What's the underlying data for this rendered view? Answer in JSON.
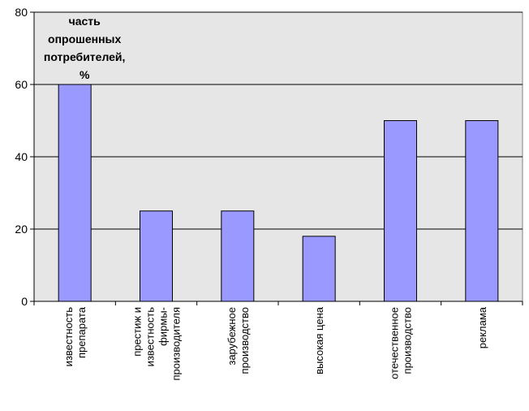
{
  "chart_data": {
    "type": "bar",
    "title_lines": [
      "часть",
      "опрошенных",
      "потребителей,",
      "%"
    ],
    "categories": [
      [
        "известность",
        "препарата"
      ],
      [
        "престиж и",
        "известность",
        "фирмы-",
        "производителя"
      ],
      [
        "зарубежное",
        "производство"
      ],
      [
        "высокая цена"
      ],
      [
        "отечественное",
        "производство"
      ],
      [
        "реклама"
      ]
    ],
    "values": [
      60,
      25,
      25,
      18,
      50,
      50
    ],
    "yticks": [
      "0",
      "20",
      "40",
      "60",
      "80"
    ],
    "ylim": [
      0,
      80
    ],
    "grid": true,
    "legend": "none",
    "colors": {
      "bar_fill": "#9999ff",
      "bar_stroke": "#000000",
      "plot_bg": "#e6e6e6",
      "grid": "#000000"
    }
  }
}
